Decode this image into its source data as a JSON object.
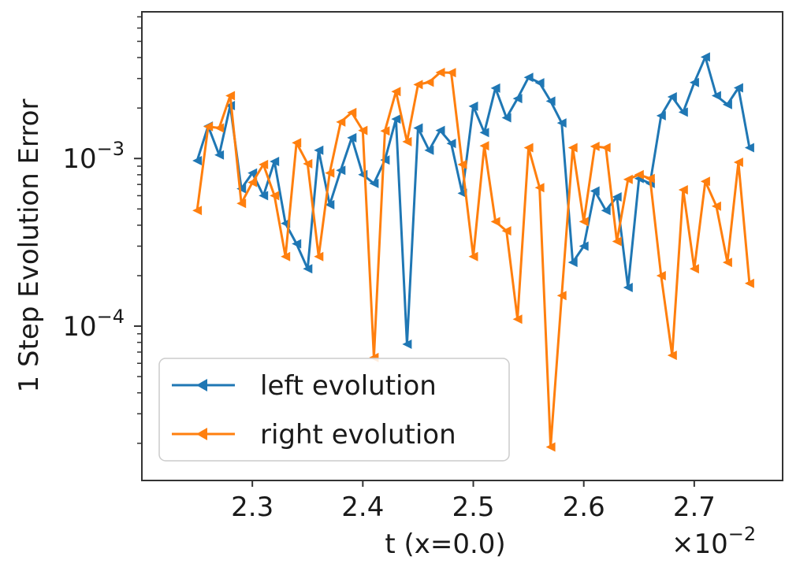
{
  "chart_data": {
    "type": "line",
    "title": "",
    "xlabel": "t (x=0.0)",
    "x_offset_label": "×10",
    "x_offset_exponent": "−2",
    "ylabel": "1 Step Evolution Error",
    "yscale": "log",
    "xlim": [
      2.2,
      2.78
    ],
    "ylim": [
      1.2e-05,
      0.0075
    ],
    "xticks": [
      {
        "value": 2.3,
        "label": "2.3"
      },
      {
        "value": 2.4,
        "label": "2.4"
      },
      {
        "value": 2.5,
        "label": "2.5"
      },
      {
        "value": 2.6,
        "label": "2.6"
      },
      {
        "value": 2.7,
        "label": "2.7"
      }
    ],
    "yticks": [
      {
        "value": 0.001,
        "base": "10",
        "exp": "−3"
      },
      {
        "value": 0.0001,
        "base": "10",
        "exp": "−4"
      }
    ],
    "legend_position": "lower-left",
    "series": [
      {
        "name": "left evolution",
        "color": "#1f77b4",
        "x": [
          2.25,
          2.26,
          2.27,
          2.28,
          2.29,
          2.3,
          2.31,
          2.32,
          2.33,
          2.34,
          2.35,
          2.36,
          2.37,
          2.38,
          2.39,
          2.4,
          2.41,
          2.42,
          2.43,
          2.44,
          2.45,
          2.46,
          2.47,
          2.48,
          2.49,
          2.5,
          2.51,
          2.52,
          2.53,
          2.54,
          2.55,
          2.56,
          2.57,
          2.58,
          2.59,
          2.6,
          2.61,
          2.62,
          2.63,
          2.64,
          2.65,
          2.66,
          2.67,
          2.68,
          2.69,
          2.7,
          2.71,
          2.72,
          2.73,
          2.74,
          2.75
        ],
        "y": [
          0.00097,
          0.00156,
          0.00105,
          0.00207,
          0.00066,
          0.00082,
          0.0006,
          0.00096,
          0.00041,
          0.00031,
          0.00022,
          0.00112,
          0.00053,
          0.00085,
          0.00133,
          0.0008,
          0.00071,
          0.00098,
          0.00172,
          7.8e-05,
          0.00152,
          0.00112,
          0.00147,
          0.00123,
          0.00062,
          0.00205,
          0.00143,
          0.00263,
          0.00175,
          0.00228,
          0.00305,
          0.00283,
          0.0022,
          0.00163,
          0.00024,
          0.0003,
          0.00064,
          0.00049,
          0.00059,
          0.00017,
          0.00076,
          0.00071,
          0.0018,
          0.00233,
          0.00189,
          0.00284,
          0.00403,
          0.00237,
          0.0021,
          0.00264,
          0.00116
        ]
      },
      {
        "name": "right evolution",
        "color": "#ff7f0e",
        "x": [
          2.25,
          2.26,
          2.27,
          2.28,
          2.29,
          2.3,
          2.31,
          2.32,
          2.33,
          2.34,
          2.35,
          2.36,
          2.37,
          2.38,
          2.39,
          2.4,
          2.41,
          2.42,
          2.43,
          2.44,
          2.45,
          2.46,
          2.47,
          2.48,
          2.49,
          2.5,
          2.51,
          2.52,
          2.53,
          2.54,
          2.55,
          2.56,
          2.57,
          2.58,
          2.59,
          2.6,
          2.61,
          2.62,
          2.63,
          2.64,
          2.65,
          2.66,
          2.67,
          2.68,
          2.69,
          2.7,
          2.71,
          2.72,
          2.73,
          2.74,
          2.75
        ],
        "y": [
          0.00049,
          0.00155,
          0.00152,
          0.00237,
          0.00054,
          0.00072,
          0.00092,
          0.0006,
          0.00026,
          0.00124,
          0.00093,
          0.00026,
          0.00082,
          0.00165,
          0.00188,
          0.00147,
          6.5e-05,
          0.00146,
          0.00251,
          0.00126,
          0.00276,
          0.00285,
          0.00326,
          0.00325,
          0.00092,
          0.00026,
          0.00119,
          0.00042,
          0.00037,
          0.00011,
          0.00116,
          0.00067,
          1.9e-05,
          0.000152,
          0.00116,
          0.00042,
          0.00118,
          0.00116,
          0.00032,
          0.00075,
          0.0008,
          0.00076,
          0.0002,
          6.7e-05,
          0.00065,
          0.00022,
          0.00073,
          0.00052,
          0.00024,
          0.00095,
          0.00018
        ]
      }
    ]
  }
}
